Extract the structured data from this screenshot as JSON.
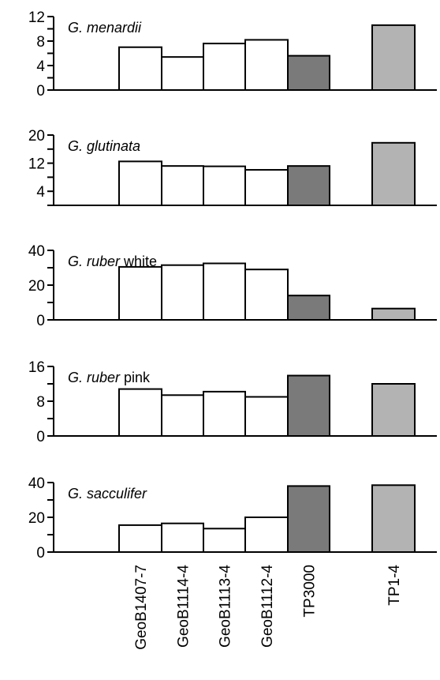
{
  "chart_data": [
    {
      "type": "bar",
      "title_italic": "G. menardii",
      "title_plain": "",
      "categories": [
        "GeoB1407-7",
        "GeoB1114-4",
        "GeoB1113-4",
        "GeoB1112-4",
        "TP3000",
        "TP1-4"
      ],
      "values": [
        7.0,
        5.4,
        7.6,
        8.2,
        5.6,
        10.6
      ],
      "ylim": [
        0,
        12
      ],
      "yticks": [
        0,
        4,
        8,
        12
      ],
      "xlabel": "",
      "ylabel": ""
    },
    {
      "type": "bar",
      "title_italic": "G. glutinata",
      "title_plain": "",
      "categories": [
        "GeoB1407-7",
        "GeoB1114-4",
        "GeoB1113-4",
        "GeoB1112-4",
        "TP3000",
        "TP1-4"
      ],
      "values": [
        12.5,
        11.2,
        11.1,
        10.1,
        11.2,
        17.8
      ],
      "ylim": [
        0,
        20
      ],
      "yticks": [
        4,
        12,
        20
      ],
      "xlabel": "",
      "ylabel": ""
    },
    {
      "type": "bar",
      "title_italic": "G. ruber",
      "title_plain": " white",
      "categories": [
        "GeoB1407-7",
        "GeoB1114-4",
        "GeoB1113-4",
        "GeoB1112-4",
        "TP3000",
        "TP1-4"
      ],
      "values": [
        30.5,
        31.5,
        32.5,
        29.0,
        14.0,
        6.5
      ],
      "ylim": [
        0,
        40
      ],
      "yticks": [
        0,
        20,
        40
      ],
      "xlabel": "",
      "ylabel": ""
    },
    {
      "type": "bar",
      "title_italic": "G. ruber",
      "title_plain": " pink",
      "categories": [
        "GeoB1407-7",
        "GeoB1114-4",
        "GeoB1113-4",
        "GeoB1112-4",
        "TP3000",
        "TP1-4"
      ],
      "values": [
        10.8,
        9.4,
        10.2,
        9.0,
        13.9,
        12.0
      ],
      "ylim": [
        0,
        16
      ],
      "yticks": [
        0,
        8,
        16
      ],
      "xlabel": "",
      "ylabel": ""
    },
    {
      "type": "bar",
      "title_italic": "G. sacculifer",
      "title_plain": "",
      "categories": [
        "GeoB1407-7",
        "GeoB1114-4",
        "GeoB1113-4",
        "GeoB1112-4",
        "TP3000",
        "TP1-4"
      ],
      "values": [
        15.5,
        16.5,
        13.5,
        20.0,
        38.0,
        38.5
      ],
      "ylim": [
        0,
        40
      ],
      "yticks": [
        0,
        20,
        40
      ],
      "xlabel": "",
      "ylabel": ""
    }
  ],
  "category_labels": [
    "GeoB1407-7",
    "GeoB1114-4",
    "GeoB1113-4",
    "GeoB1112-4",
    "TP3000",
    "TP1-4"
  ],
  "bar_colors": [
    "#ffffff",
    "#ffffff",
    "#ffffff",
    "#ffffff",
    "#7a7a7a",
    "#b3b3b3"
  ],
  "axis_color": "#000000"
}
